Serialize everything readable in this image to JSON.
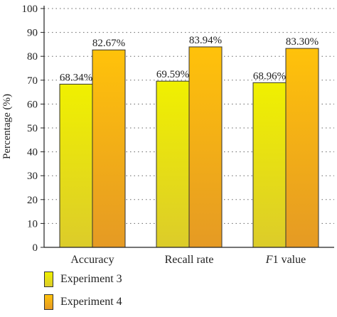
{
  "chart_data": {
    "type": "bar",
    "title": "",
    "xlabel": "",
    "ylabel": "Percentage (%)",
    "ylim": [
      0,
      100
    ],
    "yticks": [
      0,
      10,
      20,
      30,
      40,
      50,
      60,
      70,
      80,
      90,
      100
    ],
    "grid": "dotted horizontal",
    "legend_position": "bottom-left",
    "categories": [
      {
        "pre": "",
        "italic": "",
        "post": "Accuracy"
      },
      {
        "pre": "",
        "italic": "",
        "post": "Recall rate"
      },
      {
        "pre": "",
        "italic": "F",
        "post": "1 value"
      }
    ],
    "series": [
      {
        "name": "Experiment 3",
        "values": [
          68.34,
          69.59,
          68.96
        ],
        "labels": [
          "68.34%",
          "69.59%",
          "68.96%"
        ],
        "color_top": "#f0f000",
        "color_bottom": "#dccc2a"
      },
      {
        "name": "Experiment 4",
        "values": [
          82.67,
          83.94,
          83.3
        ],
        "labels": [
          "82.67%",
          "83.94%",
          "83.30%"
        ],
        "color_top": "#ffc20a",
        "color_bottom": "#e59a24"
      }
    ]
  }
}
